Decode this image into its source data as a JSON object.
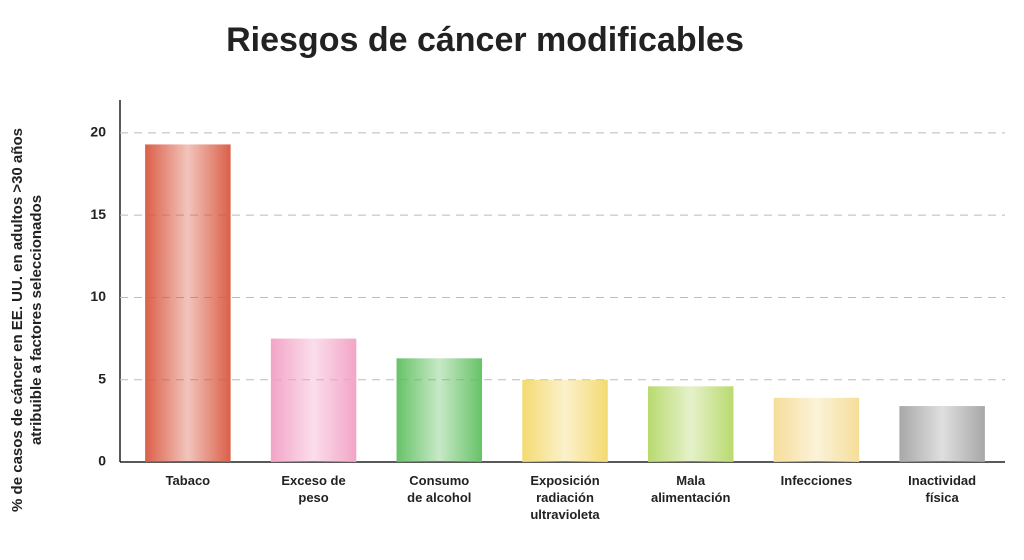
{
  "chart_data": {
    "type": "bar",
    "title": "Riesgos de cáncer modificables",
    "ylabel": "% de casos de cáncer en EE. UU. en adultos >30 años\natribuible a factores seleccionados",
    "categories": [
      "Tabaco",
      "Exceso de\npeso",
      "Consumo\nde alcohol",
      "Exposición\nradiación\nultravioleta",
      "Mala\nalimentación",
      "Infecciones",
      "Inactividad\nfísica"
    ],
    "values": [
      19.3,
      7.5,
      6.3,
      5.0,
      4.6,
      3.9,
      3.4
    ],
    "colors": [
      "#d9573f",
      "#f2a0c4",
      "#5fbf5f",
      "#f3d86a",
      "#b5d868",
      "#f5dc94",
      "#a3a3a3"
    ],
    "ylim": [
      0,
      22
    ],
    "yticks": [
      0,
      5,
      10,
      15,
      20
    ],
    "grid": true
  }
}
